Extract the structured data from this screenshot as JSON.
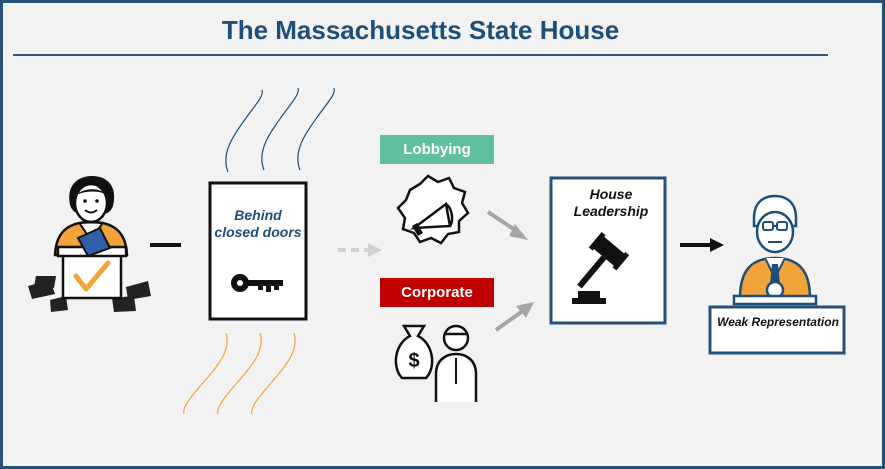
{
  "title": "The Massachusetts State House",
  "nodes": {
    "behind_closed_doors": "Behind closed doors",
    "lobbying": "Lobbying",
    "corporate": "Corporate",
    "house_leadership": "House Leadership",
    "weak_representation": "Weak Representation"
  },
  "icons": {
    "voter": "voter-with-ballot-box-icon",
    "key": "key-icon",
    "megaphone": "megaphone-badge-icon",
    "money_person": "money-bag-person-icon",
    "gavel": "gavel-icon",
    "representative": "representative-at-podium-icon"
  },
  "colors": {
    "frame": "#24507a",
    "title": "#1f4e79",
    "lobbying": "#5fbf9f",
    "corporate": "#c00000",
    "accent_orange": "#f2a33a",
    "arrow_gray": "#a6a6a6"
  }
}
